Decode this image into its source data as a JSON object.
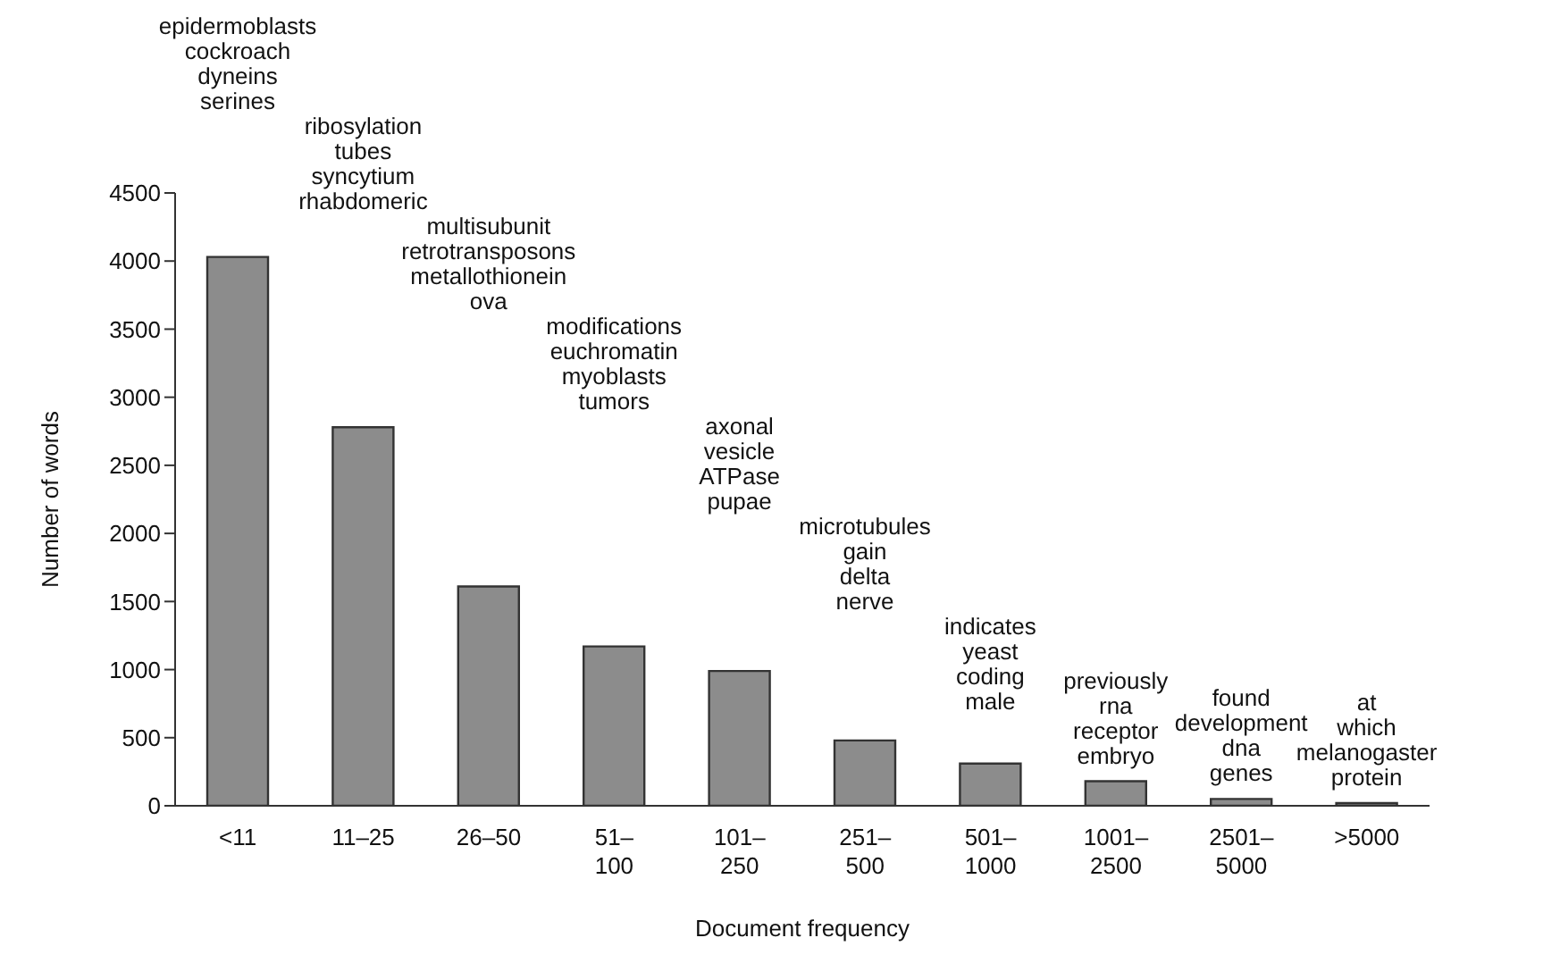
{
  "chart_data": {
    "type": "bar",
    "xlabel": "Document frequency",
    "ylabel": "Number of words",
    "categories": [
      "<11",
      "11–25",
      "26–50",
      "51–100",
      "101–250",
      "251–500",
      "501–1000",
      "1001–2500",
      "2501–5000",
      ">5000"
    ],
    "values": [
      4030,
      2780,
      1610,
      1170,
      990,
      480,
      310,
      180,
      50,
      20
    ],
    "color": "#8c8c8c",
    "ylim": [
      0,
      4500
    ],
    "yticks": [
      0,
      500,
      1000,
      1500,
      2000,
      2500,
      3000,
      3500,
      4000,
      4500
    ],
    "grid": false,
    "legend": false,
    "annotations": [
      "epidermoblasts\ncockroach\ndyneins\nserines",
      "ribosylation\ntubes\nsyncytium\nrhabdomeric",
      "multisubunit\nretrotransposons\nmetallothionein\nova",
      "modifications\neuchromatin\nmyoblasts\ntumors",
      "axonal\nvesicle\nATPase\npupae",
      "microtubules\ngain\ndelta\nnerve",
      "indicates\nyeast\ncoding\nmale",
      "previously\nrna\nreceptor\nembryo",
      "found\ndevelopment\ndna\ngenes",
      "at\nwhich\nmelanogaster\nprotein"
    ]
  }
}
